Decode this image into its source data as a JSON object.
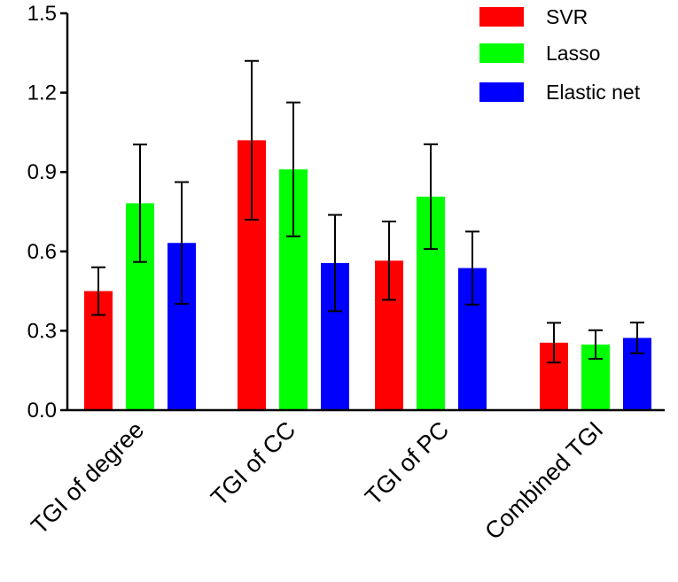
{
  "chart_data": {
    "type": "bar",
    "title": "",
    "xlabel": "",
    "ylabel": "",
    "categories": [
      "TGI of degree",
      "TGI of CC",
      "TGI of PC",
      "Combined TGI"
    ],
    "series": [
      {
        "name": "SVR",
        "color": "#ff0000",
        "values": [
          0.45,
          1.02,
          0.565,
          0.255
        ],
        "errors": [
          0.09,
          0.3,
          0.148,
          0.075
        ]
      },
      {
        "name": "Lasso",
        "color": "#00ff00",
        "values": [
          0.782,
          0.91,
          0.807,
          0.248
        ],
        "errors": [
          0.222,
          0.253,
          0.198,
          0.054
        ]
      },
      {
        "name": "Elastic net",
        "color": "#0000ff",
        "values": [
          0.632,
          0.556,
          0.537,
          0.273
        ],
        "errors": [
          0.23,
          0.182,
          0.138,
          0.058
        ]
      }
    ],
    "ylim": [
      0,
      1.5
    ],
    "yticks": [
      "0.0",
      "0.3",
      "0.6",
      "0.9",
      "1.2",
      "1.5"
    ],
    "ytick_values": [
      0,
      0.3,
      0.6,
      0.9,
      1.2,
      1.5
    ],
    "grid": false,
    "legend_position": "top-right"
  }
}
